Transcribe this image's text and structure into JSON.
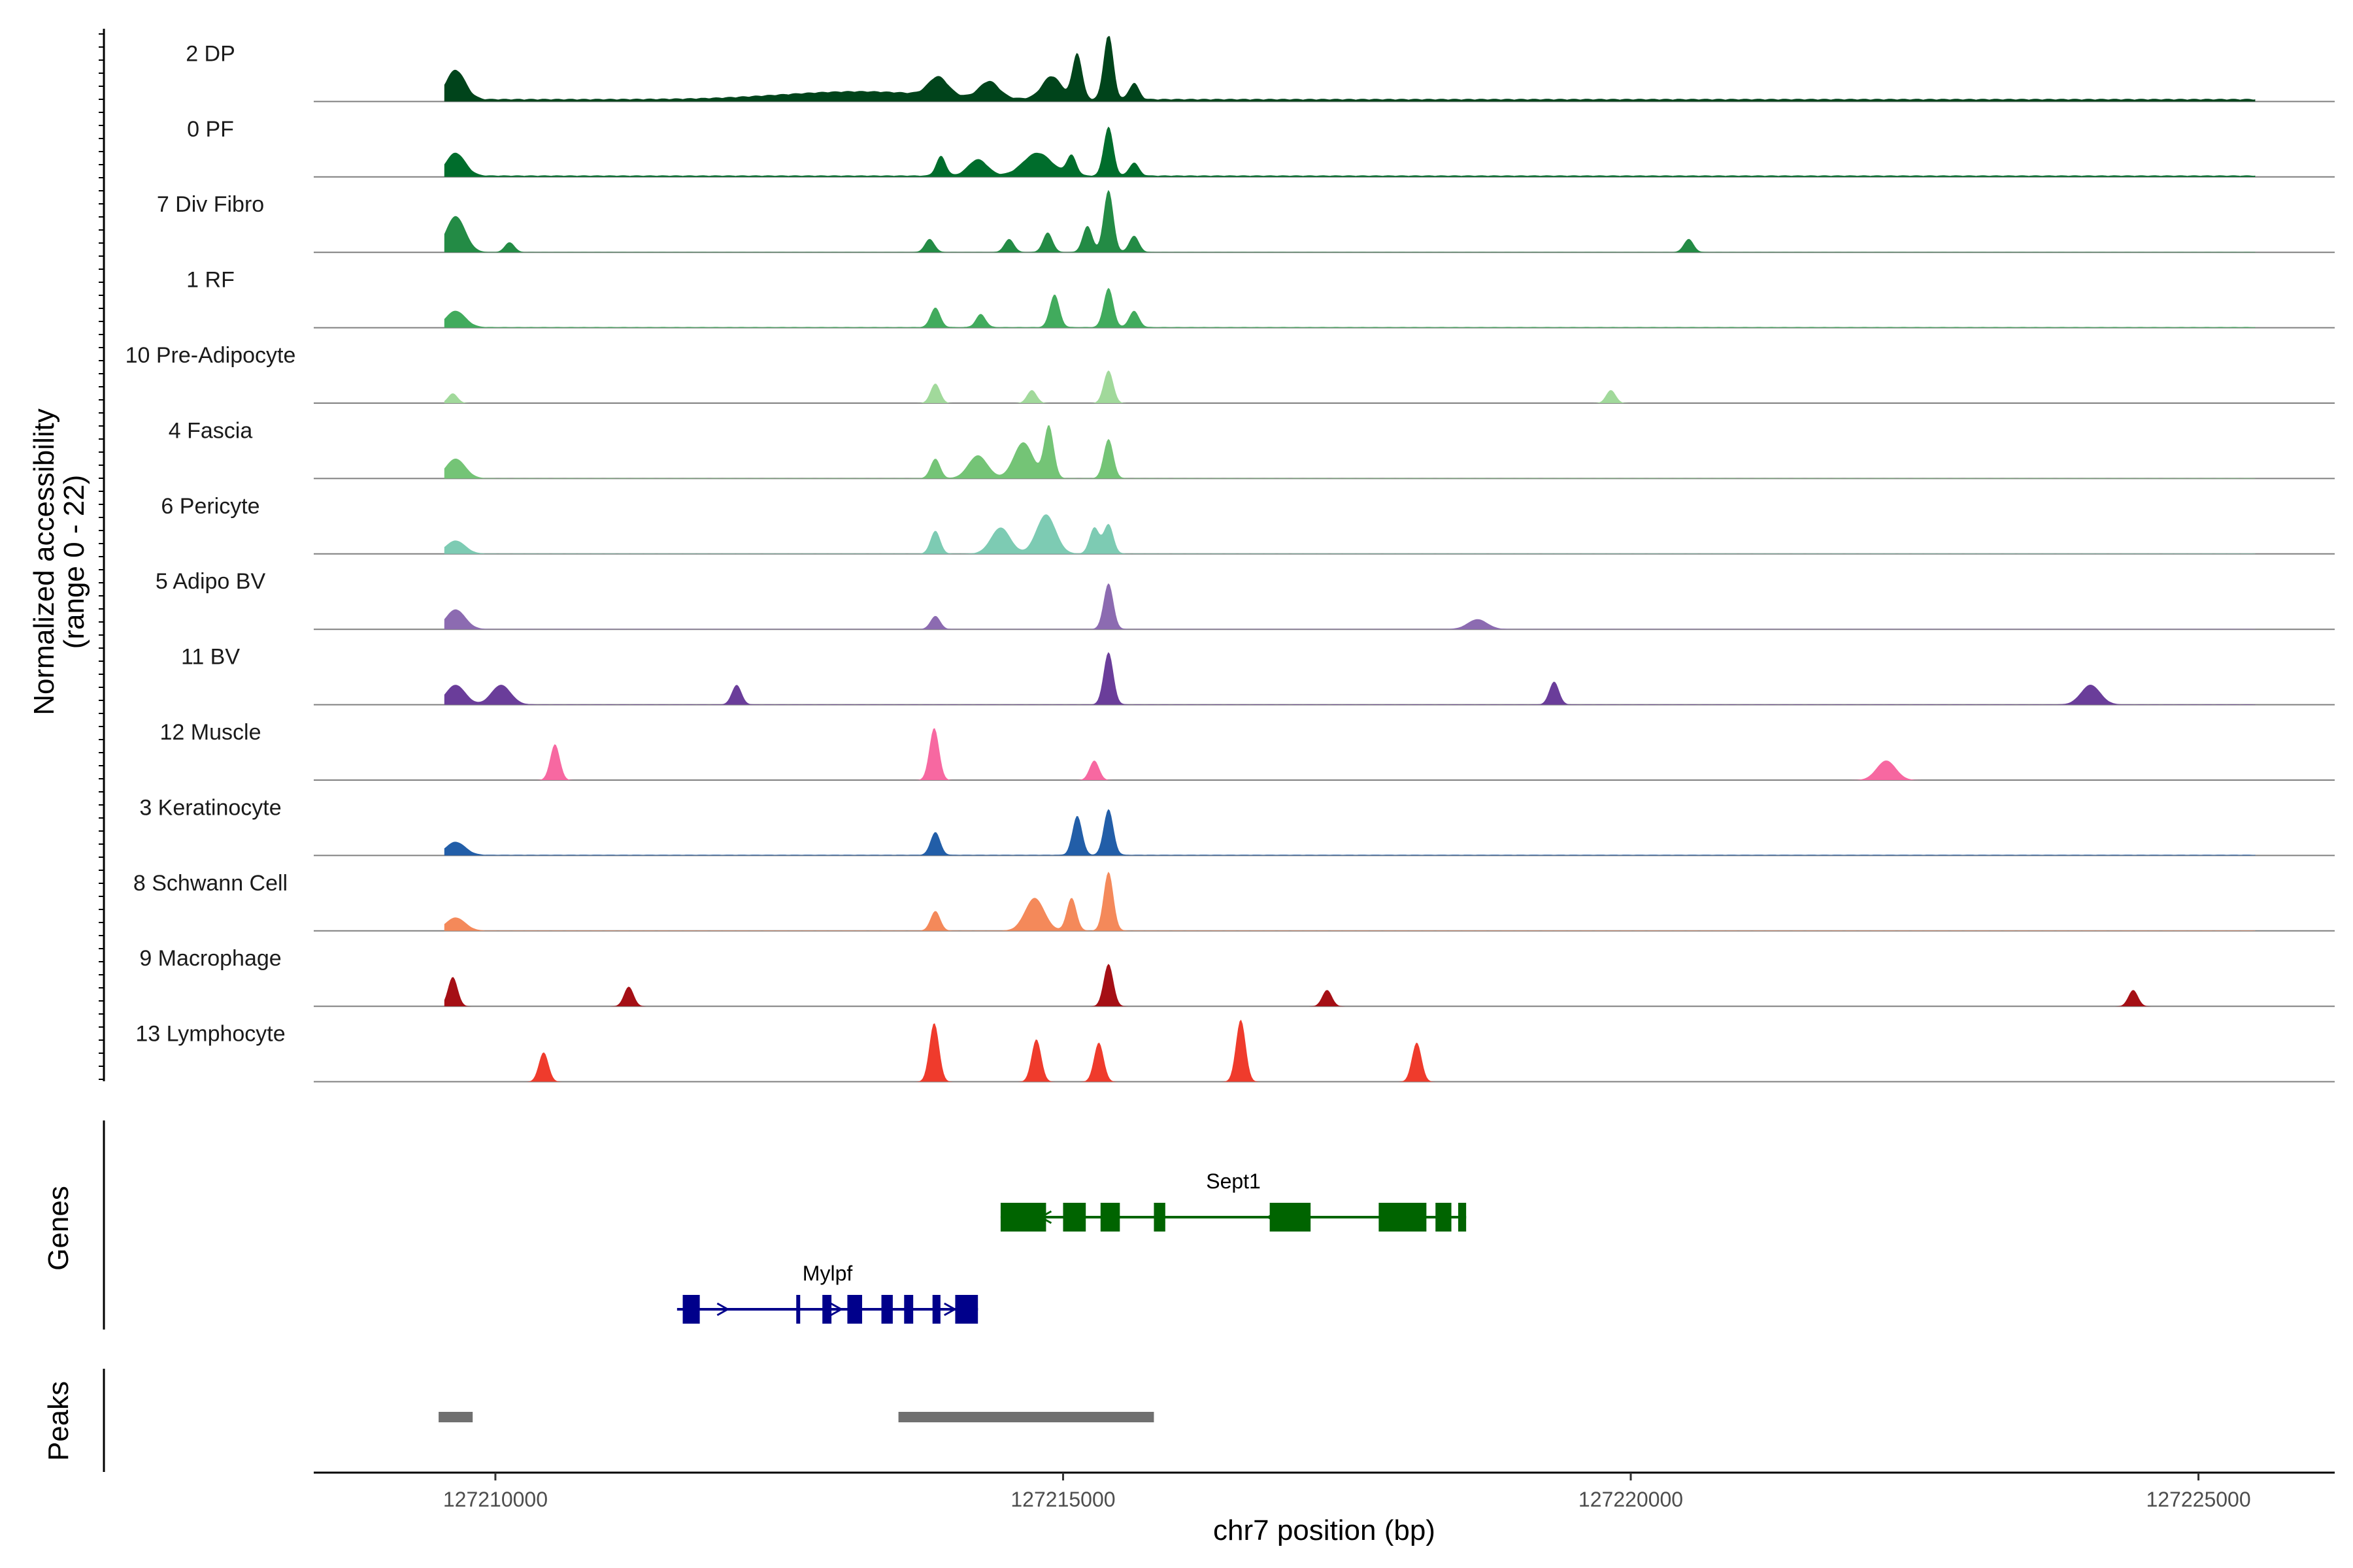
{
  "chart_data": {
    "type": "area",
    "panel_y_title_line1": "Normalized accessibility",
    "panel_y_title_line2": "(range 0 - 22)",
    "genes_title": "Genes",
    "peaks_title": "Peaks",
    "xlabel": "chr7 position (bp)",
    "xlim": [
      127208400,
      127226200
    ],
    "x_ticks": [
      127210000,
      127215000,
      127220000,
      127225000
    ],
    "x_tick_labels": [
      "127210000",
      "127215000",
      "127220000",
      "127225000"
    ],
    "ylim": [
      0,
      22
    ],
    "tracks": [
      {
        "name": "2 DP",
        "color": "#00441b",
        "baseline": 0.35,
        "peaks": [
          [
            127209600,
            127209700,
            0.45
          ],
          [
            127212800,
            127213600,
            0.12
          ],
          [
            127213850,
            127213950,
            0.28
          ],
          [
            127214300,
            127214400,
            0.25
          ],
          [
            127214850,
            127214950,
            0.35
          ],
          [
            127215100,
            127215150,
            0.7
          ],
          [
            127215380,
            127215420,
            1.0
          ],
          [
            127215600,
            127215650,
            0.25
          ]
        ]
      },
      {
        "name": "0 PF",
        "color": "#006d2c",
        "baseline": 0.2,
        "peaks": [
          [
            127209600,
            127209700,
            0.35
          ],
          [
            127213900,
            127213950,
            0.3
          ],
          [
            127214200,
            127214300,
            0.25
          ],
          [
            127214700,
            127214850,
            0.35
          ],
          [
            127215050,
            127215100,
            0.3
          ],
          [
            127215380,
            127215420,
            0.75
          ],
          [
            127215600,
            127215650,
            0.2
          ]
        ]
      },
      {
        "name": "7 Div Fibro",
        "color": "#238b45",
        "baseline": 0.05,
        "peaks": [
          [
            127209600,
            127209700,
            0.55
          ],
          [
            127210100,
            127210150,
            0.15
          ],
          [
            127213800,
            127213850,
            0.2
          ],
          [
            127214500,
            127214550,
            0.2
          ],
          [
            127214850,
            127214880,
            0.3
          ],
          [
            127215200,
            127215230,
            0.4
          ],
          [
            127215380,
            127215420,
            0.95
          ],
          [
            127215600,
            127215650,
            0.25
          ],
          [
            127220500,
            127220520,
            0.2
          ]
        ]
      },
      {
        "name": "1 RF",
        "color": "#41ab5d",
        "baseline": 0.1,
        "peaks": [
          [
            127209600,
            127209700,
            0.25
          ],
          [
            127213850,
            127213900,
            0.3
          ],
          [
            127214250,
            127214300,
            0.2
          ],
          [
            127214900,
            127214950,
            0.5
          ],
          [
            127215380,
            127215420,
            0.6
          ],
          [
            127215600,
            127215650,
            0.25
          ]
        ]
      },
      {
        "name": "10 Pre-Adipocyte",
        "color": "#a1d99b",
        "baseline": 0.0,
        "peaks": [
          [
            127209600,
            127209650,
            0.15
          ],
          [
            127213850,
            127213900,
            0.3
          ],
          [
            127214700,
            127214750,
            0.2
          ],
          [
            127215380,
            127215420,
            0.5
          ],
          [
            127219800,
            127219850,
            0.2
          ]
        ]
      },
      {
        "name": "4 Fascia",
        "color": "#74c476",
        "baseline": 0.05,
        "peaks": [
          [
            127209600,
            127209700,
            0.3
          ],
          [
            127213850,
            127213900,
            0.3
          ],
          [
            127214200,
            127214300,
            0.35
          ],
          [
            127214600,
            127214700,
            0.55
          ],
          [
            127214850,
            127214900,
            0.8
          ],
          [
            127215380,
            127215420,
            0.6
          ]
        ]
      },
      {
        "name": "6 Pericyte",
        "color": "#7dcbb3",
        "baseline": 0.05,
        "peaks": [
          [
            127209600,
            127209700,
            0.2
          ],
          [
            127213850,
            127213900,
            0.35
          ],
          [
            127214400,
            127214500,
            0.4
          ],
          [
            127214800,
            127214900,
            0.6
          ],
          [
            127215250,
            127215300,
            0.4
          ],
          [
            127215380,
            127215420,
            0.45
          ]
        ]
      },
      {
        "name": "5 Adipo BV",
        "color": "#8c6bb1",
        "baseline": 0.05,
        "peaks": [
          [
            127209600,
            127209700,
            0.3
          ],
          [
            127213850,
            127213900,
            0.2
          ],
          [
            127215380,
            127215420,
            0.7
          ],
          [
            127218600,
            127218700,
            0.15
          ]
        ]
      },
      {
        "name": "11 BV",
        "color": "#6a3d9a",
        "baseline": 0.05,
        "peaks": [
          [
            127209600,
            127209700,
            0.3
          ],
          [
            127210000,
            127210100,
            0.3
          ],
          [
            127212100,
            127212150,
            0.3
          ],
          [
            127215380,
            127215420,
            0.8
          ],
          [
            127219300,
            127219350,
            0.35
          ],
          [
            127224000,
            127224100,
            0.3
          ]
        ]
      },
      {
        "name": "12 Muscle",
        "color": "#f768a1",
        "baseline": 0.0,
        "peaks": [
          [
            127210500,
            127210550,
            0.55
          ],
          [
            127213850,
            127213880,
            0.8
          ],
          [
            127215250,
            127215300,
            0.3
          ],
          [
            127222200,
            127222300,
            0.3
          ]
        ]
      },
      {
        "name": "3 Keratinocyte",
        "color": "#225ea8",
        "baseline": 0.1,
        "peaks": [
          [
            127209600,
            127209700,
            0.2
          ],
          [
            127213850,
            127213900,
            0.35
          ],
          [
            127215100,
            127215150,
            0.6
          ],
          [
            127215380,
            127215420,
            0.7
          ]
        ]
      },
      {
        "name": "8 Schwann Cell",
        "color": "#f4895a",
        "baseline": 0.05,
        "peaks": [
          [
            127209600,
            127209700,
            0.2
          ],
          [
            127213850,
            127213900,
            0.3
          ],
          [
            127214700,
            127214800,
            0.5
          ],
          [
            127215050,
            127215100,
            0.5
          ],
          [
            127215380,
            127215420,
            0.9
          ]
        ]
      },
      {
        "name": "9 Macrophage",
        "color": "#a50f15",
        "baseline": 0.0,
        "peaks": [
          [
            127209600,
            127209650,
            0.45
          ],
          [
            127211150,
            127211200,
            0.3
          ],
          [
            127215380,
            127215420,
            0.65
          ],
          [
            127217300,
            127217350,
            0.25
          ],
          [
            127224400,
            127224450,
            0.25
          ]
        ]
      },
      {
        "name": "13 Lymphocyte",
        "color": "#ef3b2c",
        "baseline": 0.0,
        "peaks": [
          [
            127210400,
            127210450,
            0.45
          ],
          [
            127213850,
            127213880,
            0.9
          ],
          [
            127214750,
            127214780,
            0.65
          ],
          [
            127215300,
            127215330,
            0.6
          ],
          [
            127216550,
            127216580,
            0.95
          ],
          [
            127218100,
            127218130,
            0.6
          ]
        ]
      }
    ],
    "genes": [
      {
        "name": "Sept1",
        "strand": "-",
        "color": "#006400",
        "start": 127214450,
        "end": 127218550,
        "exons": [
          [
            127214450,
            127214850
          ],
          [
            127215000,
            127215200
          ],
          [
            127215330,
            127215500
          ],
          [
            127215800,
            127215900
          ],
          [
            127216820,
            127217180
          ],
          [
            127217780,
            127218200
          ],
          [
            127218280,
            127218420
          ],
          [
            127218480,
            127218550
          ]
        ]
      },
      {
        "name": "Mylpf",
        "strand": "+",
        "color": "#00008b",
        "start": 127211600,
        "end": 127214250,
        "exons": [
          [
            127211650,
            127211800
          ],
          [
            127212650,
            127212680
          ],
          [
            127212880,
            127212960
          ],
          [
            127213100,
            127213230
          ],
          [
            127213400,
            127213500
          ],
          [
            127213600,
            127213680
          ],
          [
            127213850,
            127213920
          ],
          [
            127214050,
            127214250
          ]
        ]
      }
    ],
    "peaks": [
      [
        127209500,
        127209800
      ],
      [
        127213550,
        127215800
      ]
    ]
  }
}
